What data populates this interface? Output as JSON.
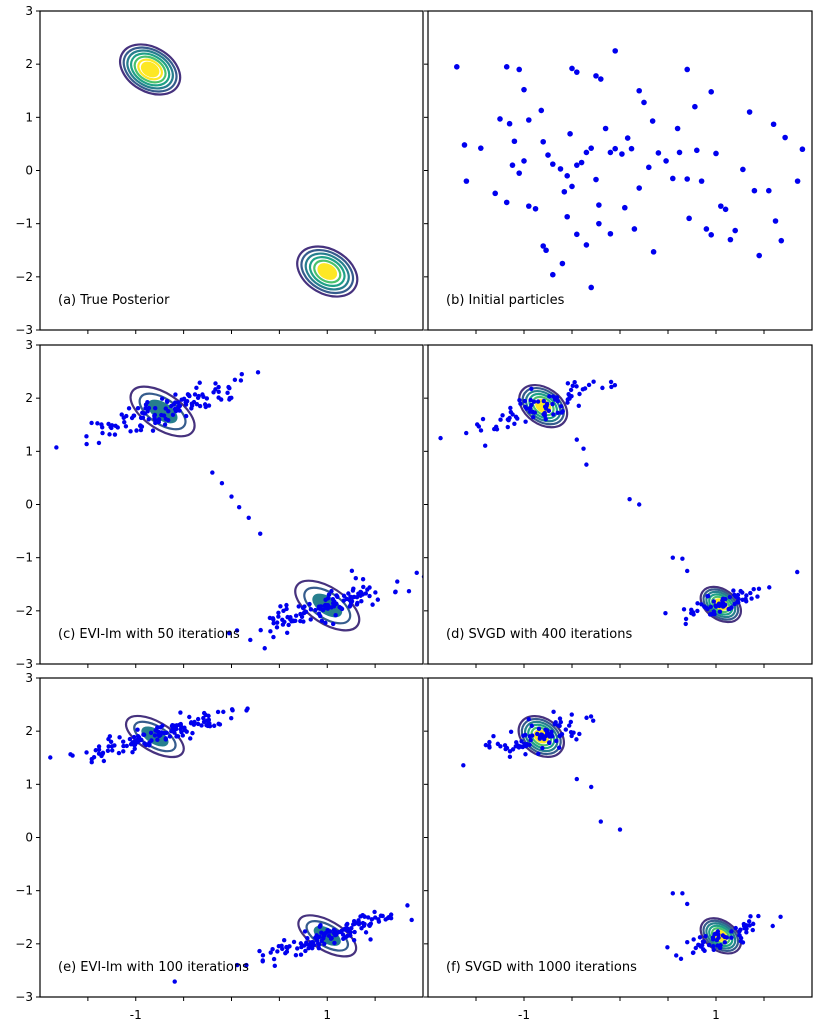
{
  "chart_data": {
    "type": "scatter",
    "layout": "3x2 grid of panels",
    "axes": {
      "xlim": [
        -2,
        2
      ],
      "ylim": [
        -3,
        3
      ],
      "x_ticks": [
        -1.5,
        -1,
        -0.5,
        0,
        0.5,
        1,
        1.5
      ],
      "x_tick_labels": [
        {
          "value": -1,
          "label": "-1"
        },
        {
          "value": 1,
          "label": "1"
        }
      ],
      "y_ticks": [
        {
          "value": 3,
          "label": "3"
        },
        {
          "value": 2,
          "label": "2"
        },
        {
          "value": 1,
          "label": "1"
        },
        {
          "value": 0,
          "label": "0"
        },
        {
          "value": -1,
          "label": "−1"
        },
        {
          "value": -2,
          "label": "−2"
        },
        {
          "value": -3,
          "label": "−3"
        }
      ]
    },
    "colors": {
      "particles": "#0000ee",
      "contour_outer": "#46327e",
      "contour_mid": "#365c8d",
      "contour_mid2": "#277f8e",
      "contour_inner": "#1fa187",
      "contour_core": "#4ac16d",
      "contour_peak": "#fde725"
    },
    "panels": [
      {
        "id": "a",
        "caption": "(a) True Posterior",
        "contours": [
          {
            "center": [
              -0.85,
              1.9
            ],
            "angle": -60,
            "sx": 0.21,
            "sy": 0.55,
            "levels": 7
          },
          {
            "center": [
              1.0,
              -1.9
            ],
            "angle": -60,
            "sx": 0.21,
            "sy": 0.55,
            "levels": 6
          }
        ],
        "particles": []
      },
      {
        "id": "b",
        "caption": "(b) Initial particles",
        "contours": [],
        "particles": [
          [
            -1.7,
            1.95
          ],
          [
            -1.18,
            1.95
          ],
          [
            -1.05,
            1.9
          ],
          [
            -0.5,
            1.92
          ],
          [
            -0.45,
            1.85
          ],
          [
            -0.05,
            2.25
          ],
          [
            0.7,
            1.9
          ],
          [
            -0.2,
            1.72
          ],
          [
            -0.25,
            1.78
          ],
          [
            0.95,
            1.48
          ],
          [
            -1.45,
            0.42
          ],
          [
            -1.62,
            0.48
          ],
          [
            -1.6,
            -0.2
          ],
          [
            -1.25,
            0.97
          ],
          [
            -1.15,
            0.88
          ],
          [
            -1.12,
            0.1
          ],
          [
            -1.05,
            -0.05
          ],
          [
            -1.0,
            1.52
          ],
          [
            -0.95,
            0.95
          ],
          [
            -0.82,
            1.13
          ],
          [
            -0.8,
            0.54
          ],
          [
            -0.75,
            0.29
          ],
          [
            -0.7,
            0.12
          ],
          [
            -0.62,
            0.03
          ],
          [
            -0.58,
            -0.4
          ],
          [
            -0.55,
            -0.1
          ],
          [
            -0.52,
            0.69
          ],
          [
            -0.45,
            0.1
          ],
          [
            -0.4,
            0.15
          ],
          [
            -0.35,
            0.34
          ],
          [
            -0.3,
            0.42
          ],
          [
            -0.25,
            -0.17
          ],
          [
            -0.22,
            -0.65
          ],
          [
            -0.15,
            0.79
          ],
          [
            -0.1,
            0.34
          ],
          [
            -0.05,
            0.41
          ],
          [
            0.02,
            0.31
          ],
          [
            0.08,
            0.61
          ],
          [
            0.12,
            0.41
          ],
          [
            0.2,
            1.5
          ],
          [
            0.25,
            1.28
          ],
          [
            0.3,
            0.06
          ],
          [
            0.34,
            0.93
          ],
          [
            0.4,
            0.33
          ],
          [
            0.48,
            0.18
          ],
          [
            0.55,
            -0.15
          ],
          [
            0.6,
            0.79
          ],
          [
            0.62,
            0.34
          ],
          [
            0.7,
            -0.16
          ],
          [
            0.72,
            -0.9
          ],
          [
            0.78,
            1.2
          ],
          [
            0.8,
            0.38
          ],
          [
            0.85,
            -0.2
          ],
          [
            0.9,
            -1.1
          ],
          [
            0.95,
            -1.21
          ],
          [
            1.0,
            0.32
          ],
          [
            1.05,
            -0.67
          ],
          [
            1.1,
            -0.73
          ],
          [
            1.15,
            -1.3
          ],
          [
            1.2,
            -1.13
          ],
          [
            1.28,
            0.02
          ],
          [
            1.35,
            1.1
          ],
          [
            1.4,
            -0.38
          ],
          [
            1.45,
            -1.6
          ],
          [
            1.55,
            -0.38
          ],
          [
            1.6,
            0.87
          ],
          [
            1.62,
            -0.95
          ],
          [
            1.68,
            -1.32
          ],
          [
            1.72,
            0.62
          ],
          [
            1.85,
            -0.2
          ],
          [
            1.9,
            0.4
          ],
          [
            -0.8,
            -1.42
          ],
          [
            -0.77,
            -1.5
          ],
          [
            -0.7,
            -1.96
          ],
          [
            -0.6,
            -1.75
          ],
          [
            -0.55,
            -0.87
          ],
          [
            -0.45,
            -1.2
          ],
          [
            -0.35,
            -1.4
          ],
          [
            -0.3,
            -2.2
          ],
          [
            -0.22,
            -1.0
          ],
          [
            -0.1,
            -1.19
          ],
          [
            0.05,
            -0.7
          ],
          [
            0.15,
            -1.1
          ],
          [
            0.2,
            -0.33
          ],
          [
            0.35,
            -1.53
          ],
          [
            -1.3,
            -0.43
          ],
          [
            -1.18,
            -0.6
          ],
          [
            -0.95,
            -0.67
          ],
          [
            -0.88,
            -0.72
          ],
          [
            -1.1,
            0.55
          ],
          [
            -1.0,
            0.18
          ],
          [
            -0.5,
            -0.3
          ]
        ]
      },
      {
        "id": "c",
        "caption": "(c) EVI-Im with 50 iterations",
        "contours": [
          {
            "center": [
              -0.72,
              1.75
            ],
            "angle": -57,
            "sx": 0.17,
            "sy": 0.62,
            "levels": 3
          },
          {
            "center": [
              1.0,
              -1.9
            ],
            "angle": -57,
            "sx": 0.17,
            "sy": 0.62,
            "levels": 3
          }
        ],
        "particles": [],
        "generated_clusters": [
          {
            "center": [
              -0.72,
              1.75
            ],
            "angle": -57,
            "sx": 0.13,
            "sy": 0.55,
            "n": 120
          },
          {
            "center": [
              1.0,
              -1.9
            ],
            "angle": -57,
            "sx": 0.13,
            "sy": 0.55,
            "n": 120
          }
        ],
        "bridge_particles": [
          [
            -0.2,
            0.6
          ],
          [
            -0.1,
            0.4
          ],
          [
            0.0,
            0.15
          ],
          [
            0.08,
            -0.05
          ],
          [
            0.18,
            -0.25
          ],
          [
            0.3,
            -0.55
          ]
        ]
      },
      {
        "id": "d",
        "caption": "(d) SVGD with 400 iterations",
        "contours": [
          {
            "center": [
              -0.8,
              1.85
            ],
            "angle": -55,
            "sx": 0.17,
            "sy": 0.45,
            "levels": 6
          },
          {
            "center": [
              1.05,
              -1.88
            ],
            "angle": -55,
            "sx": 0.14,
            "sy": 0.38,
            "levels": 6
          }
        ],
        "particles": [
          [
            -0.45,
            1.22
          ],
          [
            -0.38,
            1.05
          ],
          [
            -0.35,
            0.75
          ],
          [
            0.1,
            0.1
          ],
          [
            0.2,
            0.0
          ],
          [
            0.55,
            -1.0
          ],
          [
            0.65,
            -1.02
          ],
          [
            0.7,
            -1.25
          ]
        ],
        "generated_clusters": [
          {
            "center": [
              -0.8,
              1.85
            ],
            "angle": -55,
            "sx": 0.13,
            "sy": 0.4,
            "n": 80
          },
          {
            "center": [
              1.05,
              -1.88
            ],
            "angle": -55,
            "sx": 0.11,
            "sy": 0.34,
            "n": 60
          }
        ]
      },
      {
        "id": "e",
        "caption": "(e) EVI-Im with 100 iterations",
        "contours": [
          {
            "center": [
              -0.8,
              1.9
            ],
            "angle": -60,
            "sx": 0.14,
            "sy": 0.55,
            "levels": 3
          },
          {
            "center": [
              1.0,
              -1.85
            ],
            "angle": -60,
            "sx": 0.14,
            "sy": 0.55,
            "levels": 3
          }
        ],
        "particles": [],
        "generated_clusters": [
          {
            "center": [
              -0.8,
              1.9
            ],
            "angle": -60,
            "sx": 0.1,
            "sy": 0.5,
            "n": 130
          },
          {
            "center": [
              1.0,
              -1.85
            ],
            "angle": -60,
            "sx": 0.1,
            "sy": 0.5,
            "n": 130
          }
        ]
      },
      {
        "id": "f",
        "caption": "(f) SVGD with 1000 iterations",
        "contours": [
          {
            "center": [
              -0.82,
              1.9
            ],
            "angle": -55,
            "sx": 0.17,
            "sy": 0.42,
            "levels": 6
          },
          {
            "center": [
              1.05,
              -1.85
            ],
            "angle": -55,
            "sx": 0.14,
            "sy": 0.38,
            "levels": 6
          }
        ],
        "particles": [
          [
            -0.45,
            1.1
          ],
          [
            -0.3,
            0.95
          ],
          [
            -0.2,
            0.3
          ],
          [
            0.0,
            0.15
          ],
          [
            0.55,
            -1.05
          ],
          [
            0.65,
            -1.05
          ],
          [
            0.7,
            -1.25
          ]
        ],
        "generated_clusters": [
          {
            "center": [
              -0.82,
              1.9
            ],
            "angle": -55,
            "sx": 0.13,
            "sy": 0.38,
            "n": 80
          },
          {
            "center": [
              1.05,
              -1.85
            ],
            "angle": -55,
            "sx": 0.11,
            "sy": 0.34,
            "n": 60
          }
        ]
      }
    ]
  }
}
